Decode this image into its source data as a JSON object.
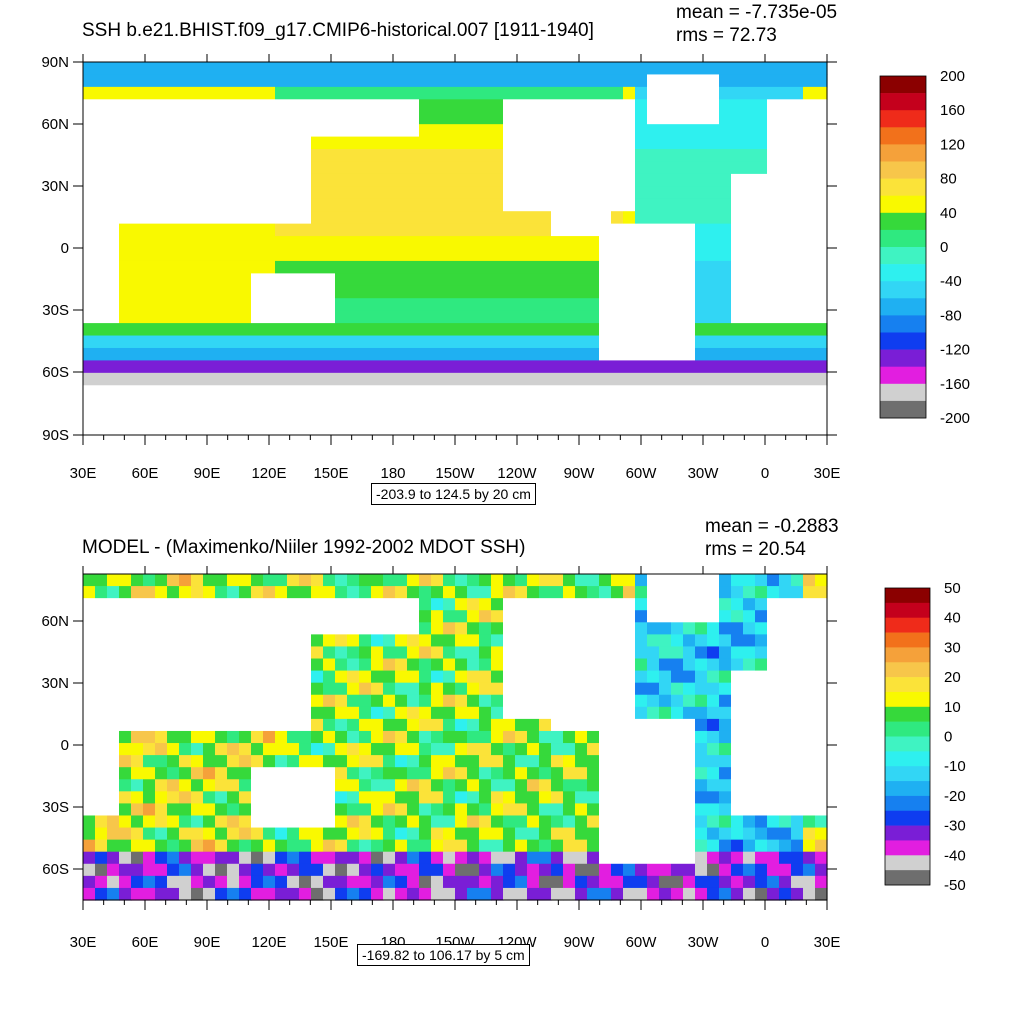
{
  "chart_data": [
    {
      "type": "heatmap",
      "title": "SSH b.e21.BHIST.f09_g17.CMIP6-historical.007 [1911-1940]",
      "mean_label": "mean = -7.735e-05",
      "rms_label": "rms = 72.73",
      "range_label": "-203.9 to 124.5 by 20 cm",
      "x_ticks": [
        "30E",
        "60E",
        "90E",
        "120E",
        "150E",
        "180",
        "150W",
        "120W",
        "90W",
        "60W",
        "30W",
        "0",
        "30E"
      ],
      "y_ticks": [
        "90N",
        "60N",
        "30N",
        "0",
        "30S",
        "60S",
        "90S"
      ],
      "lat_range": [
        -90,
        90
      ],
      "colorbar_labels": [
        "200",
        "160",
        "120",
        "80",
        "40",
        "0",
        "-40",
        "-80",
        "-120",
        "-160",
        "-200"
      ],
      "colorbar_colors": [
        "#8b0000",
        "#c4001c",
        "#ef2b1a",
        "#f2711b",
        "#f5a13a",
        "#f7c64a",
        "#fbe339",
        "#f9f900",
        "#36d93b",
        "#2fe980",
        "#3ff3c2",
        "#2ef0ef",
        "#32d6f5",
        "#1fb0f2",
        "#1680f0",
        "#0f3df0",
        "#7a1ed6",
        "#e21ee0",
        "#d0d0d0",
        "#6e6e6e"
      ]
    },
    {
      "type": "heatmap",
      "title": "MODEL - (Maximenko/Niiler 1992-2002 MDOT SSH)",
      "mean_label": "mean = -0.2883",
      "rms_label": "rms = 20.54",
      "range_label": "-169.82 to 106.17 by 5 cm",
      "x_ticks": [
        "30E",
        "60E",
        "90E",
        "120E",
        "150E",
        "180",
        "150W",
        "120W",
        "90W",
        "60W",
        "30W",
        "0",
        "30E"
      ],
      "y_ticks": [
        "60N",
        "30N",
        "0",
        "30S",
        "60S"
      ],
      "lat_range": [
        -73,
        82
      ],
      "colorbar_labels": [
        "50",
        "40",
        "30",
        "20",
        "10",
        "0",
        "-10",
        "-20",
        "-30",
        "-40",
        "-50"
      ],
      "colorbar_colors": [
        "#8b0000",
        "#c4001c",
        "#ef2b1a",
        "#f2711b",
        "#f5a13a",
        "#f7c64a",
        "#fbe339",
        "#f9f900",
        "#36d93b",
        "#2fe980",
        "#3ff3c2",
        "#2ef0ef",
        "#32d6f5",
        "#1fb0f2",
        "#1680f0",
        "#0f3df0",
        "#7a1ed6",
        "#e21ee0",
        "#d0d0d0",
        "#6e6e6e"
      ]
    }
  ]
}
